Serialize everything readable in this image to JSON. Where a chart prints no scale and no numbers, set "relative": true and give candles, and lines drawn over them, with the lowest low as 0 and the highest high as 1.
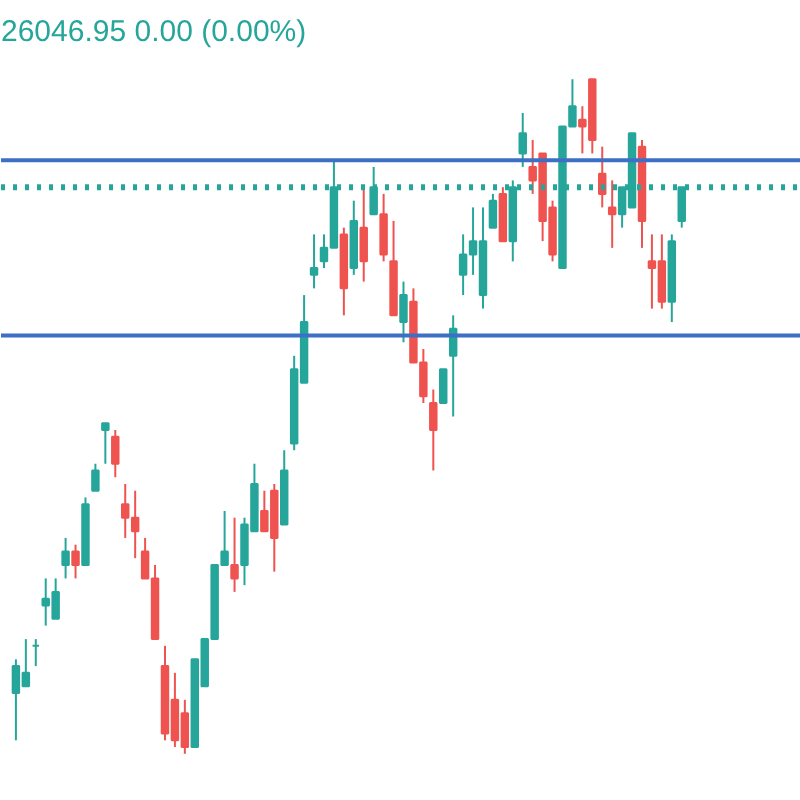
{
  "chart_data": {
    "type": "candlestick",
    "relative": true,
    "annotations": [
      "26046.95 0.00 (0.00%)"
    ],
    "colors": [
      "#26a69a",
      "#26a69a",
      "#26a69a",
      "#26a69a",
      "#26a69a",
      "#26a69a",
      "#ef5350",
      "#26a69a",
      "#26a69a",
      "#26a69a",
      "#ef5350",
      "#ef5350",
      "#ef5350",
      "#ef5350",
      "#ef5350",
      "#ef5350",
      "#ef5350",
      "#ef5350",
      "#26a69a",
      "#26a69a",
      "#26a69a",
      "#26a69a",
      "#ef5350",
      "#26a69a",
      "#26a69a",
      "#ef5350",
      "#ef5350",
      "#26a69a",
      "#26a69a",
      "#26a69a",
      "#26a69a",
      "#26a69a",
      "#26a69a",
      "#ef5350",
      "#26a69a",
      "#ef5350",
      "#26a69a",
      "#ef5350",
      "#ef5350",
      "#26a69a",
      "#ef5350",
      "#ef5350",
      "#ef5350",
      "#26a69a",
      "#26a69a",
      "#26a69a",
      "#26a69a",
      "#26a69a",
      "#26a69a",
      "#ef5350",
      "#26a69a",
      "#26a69a",
      "#ef5350",
      "#ef5350",
      "#ef5350",
      "#26a69a",
      "#26a69a",
      "#ef5350",
      "#ef5350",
      "#ef5350",
      "#ef5350",
      "#26a69a",
      "#26a69a",
      "#ef5350",
      "#ef5350",
      "#ef5350",
      "#26a69a",
      "#26a69a"
    ],
    "categories": [
      null,
      null,
      null,
      null,
      null,
      null,
      null,
      null,
      null,
      null,
      null,
      null,
      null,
      null,
      null,
      null,
      null,
      null,
      null,
      null,
      null,
      null,
      null,
      null,
      null,
      null,
      null,
      null,
      null,
      null,
      null,
      null,
      null,
      null,
      null,
      null,
      null,
      null,
      null,
      null,
      null,
      null,
      null,
      null,
      null,
      null,
      null,
      null,
      null,
      null,
      null,
      null,
      null,
      null,
      null,
      null,
      null,
      null,
      null,
      null,
      null,
      null,
      null,
      null,
      null,
      null,
      null,
      null
    ],
    "ohlc": [
      [
        0.09,
        0.14,
        0.02,
        0.13
      ],
      [
        0.1,
        0.17,
        0.1,
        0.12
      ],
      [
        0.16,
        0.17,
        0.13,
        0.16
      ],
      [
        0.22,
        0.26,
        0.19,
        0.23
      ],
      [
        0.2,
        0.26,
        0.2,
        0.24
      ],
      [
        0.28,
        0.32,
        0.26,
        0.3
      ],
      [
        0.3,
        0.31,
        0.26,
        0.28
      ],
      [
        0.28,
        0.38,
        0.28,
        0.37
      ],
      [
        0.39,
        0.43,
        0.39,
        0.42
      ],
      [
        0.48,
        0.49,
        0.43,
        0.49
      ],
      [
        0.47,
        0.48,
        0.41,
        0.43
      ],
      [
        0.37,
        0.4,
        0.32,
        0.35
      ],
      [
        0.35,
        0.39,
        0.29,
        0.33
      ],
      [
        0.3,
        0.32,
        0.26,
        0.26
      ],
      [
        0.26,
        0.28,
        0.17,
        0.17
      ],
      [
        0.13,
        0.16,
        0.02,
        0.03
      ],
      [
        0.08,
        0.12,
        0.01,
        0.02
      ],
      [
        0.06,
        0.08,
        0,
        0.01
      ],
      [
        0.01,
        0.14,
        0.01,
        0.14
      ],
      [
        0.1,
        0.17,
        0.1,
        0.17
      ],
      [
        0.17,
        0.28,
        0.17,
        0.28
      ],
      [
        0.28,
        0.36,
        0.28,
        0.3
      ],
      [
        0.28,
        0.35,
        0.24,
        0.26
      ],
      [
        0.28,
        0.35,
        0.25,
        0.34
      ],
      [
        0.33,
        0.43,
        0.33,
        0.4
      ],
      [
        0.36,
        0.39,
        0.33,
        0.33
      ],
      [
        0.39,
        0.4,
        0.27,
        0.32
      ],
      [
        0.34,
        0.45,
        0.34,
        0.42
      ],
      [
        0.46,
        0.59,
        0.45,
        0.57
      ],
      [
        0.55,
        0.68,
        0.55,
        0.64
      ],
      [
        0.71,
        0.77,
        0.69,
        0.72
      ],
      [
        0.73,
        0.77,
        0.72,
        0.75
      ],
      [
        0.75,
        0.88,
        0.75,
        0.84
      ],
      [
        0.77,
        0.78,
        0.65,
        0.69
      ],
      [
        0.72,
        0.82,
        0.71,
        0.79
      ],
      [
        0.78,
        0.84,
        0.7,
        0.73
      ],
      [
        0.8,
        0.87,
        0.8,
        0.84
      ],
      [
        0.8,
        0.83,
        0.73,
        0.74
      ],
      [
        0.73,
        0.79,
        0.65,
        0.65
      ],
      [
        0.64,
        0.7,
        0.61,
        0.68
      ],
      [
        0.67,
        0.69,
        0.58,
        0.58
      ],
      [
        0.58,
        0.6,
        0.52,
        0.53
      ],
      [
        0.52,
        0.54,
        0.42,
        0.48
      ],
      [
        0.52,
        0.57,
        0.52,
        0.57
      ],
      [
        0.59,
        0.65,
        0.5,
        0.63
      ],
      [
        0.71,
        0.77,
        0.68,
        0.74
      ],
      [
        0.74,
        0.81,
        0.71,
        0.76
      ],
      [
        0.68,
        0.81,
        0.66,
        0.76
      ],
      [
        0.78,
        0.83,
        0.78,
        0.82
      ],
      [
        0.83,
        0.84,
        0.76,
        0.76
      ],
      [
        0.76,
        0.85,
        0.73,
        0.84
      ],
      [
        0.89,
        0.95,
        0.87,
        0.92
      ],
      [
        0.87,
        0.91,
        0.83,
        0.85
      ],
      [
        0.89,
        0.89,
        0.76,
        0.79
      ],
      [
        0.81,
        0.82,
        0.73,
        0.74
      ],
      [
        0.72,
        0.93,
        0.72,
        0.93
      ],
      [
        0.93,
        1,
        0.93,
        0.96
      ],
      [
        0.94,
        0.96,
        0.89,
        0.93
      ],
      [
        1,
        1,
        0.89,
        0.91
      ],
      [
        0.86,
        0.9,
        0.81,
        0.83
      ],
      [
        0.81,
        0.85,
        0.75,
        0.8
      ],
      [
        0.8,
        0.84,
        0.78,
        0.84
      ],
      [
        0.81,
        0.92,
        0.81,
        0.92
      ],
      [
        0.9,
        0.91,
        0.75,
        0.79
      ],
      [
        0.73,
        0.77,
        0.66,
        0.72
      ],
      [
        0.73,
        0.77,
        0.66,
        0.67
      ],
      [
        0.67,
        0.77,
        0.64,
        0.76
      ],
      [
        0.79,
        0.84,
        0.78,
        0.84
      ]
    ],
    "ref_lines": [
      {
        "axis": "y",
        "value": 0.88,
        "color": "#3d6fc4",
        "line_style": "solid"
      },
      {
        "axis": "y",
        "value": 0.62,
        "color": "#3d6fc4",
        "line_style": "solid"
      },
      {
        "axis": "y",
        "value": 0.84,
        "color": "#26a69a",
        "line_style": "dotted"
      }
    ]
  }
}
